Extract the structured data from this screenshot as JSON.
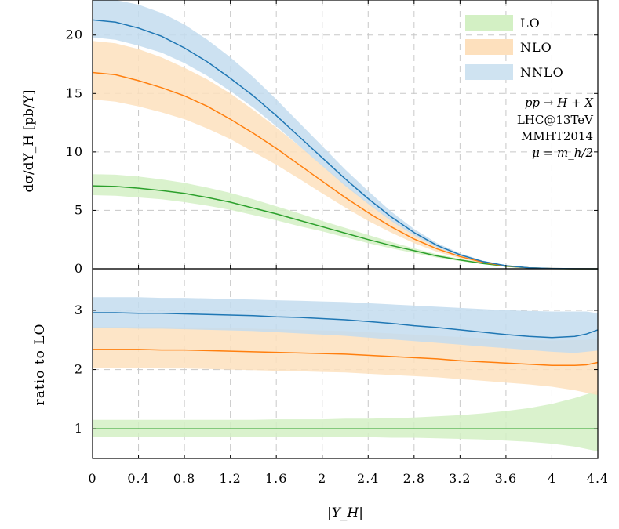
{
  "chart_data": {
    "type": "line",
    "xlabel": "|Y_H|",
    "x_ticks": [
      "0",
      "0.4",
      "0.8",
      "1.2",
      "1.6",
      "2",
      "2.4",
      "2.8",
      "3.2",
      "3.6",
      "4",
      "4.4"
    ],
    "xlim": [
      0,
      4.4
    ],
    "legend": {
      "placement": "top-right",
      "entries": [
        {
          "name": "LO",
          "color": "#d3f0c4"
        },
        {
          "name": "NLO",
          "color": "#fde0bd"
        },
        {
          "name": "NNLO",
          "color": "#cfe3f1"
        }
      ]
    },
    "annotations": [
      "pp → H + X",
      "LHC@13TeV",
      "MMHT2014",
      "μ = m_h/2"
    ],
    "colors": {
      "LO": "#2ca02c",
      "NLO": "#ff7f0e",
      "NNLO": "#1f77b4",
      "LO_band": "#d3f0c4",
      "NLO_band": "#fde0bd",
      "NNLO_band": "#c3dcee"
    },
    "top_panel": {
      "ylabel": "dσ/dY_H [pb/Y]",
      "ylim": [
        0,
        23
      ],
      "y_ticks": [
        "0",
        "5",
        "10",
        "15",
        "20"
      ],
      "x": [
        0,
        0.2,
        0.4,
        0.6,
        0.8,
        1.0,
        1.2,
        1.4,
        1.6,
        1.8,
        2.0,
        2.2,
        2.4,
        2.6,
        2.8,
        3.0,
        3.2,
        3.4,
        3.6,
        3.8,
        4.0,
        4.2,
        4.4
      ],
      "series": [
        {
          "name": "LO",
          "values": [
            7.1,
            7.05,
            6.9,
            6.7,
            6.45,
            6.1,
            5.7,
            5.2,
            4.7,
            4.15,
            3.6,
            3.05,
            2.5,
            2.0,
            1.55,
            1.1,
            0.75,
            0.45,
            0.22,
            0.08,
            0.02,
            0.003,
            0
          ],
          "upper": [
            8.1,
            8.05,
            7.9,
            7.65,
            7.35,
            6.95,
            6.5,
            5.95,
            5.35,
            4.75,
            4.1,
            3.5,
            2.9,
            2.3,
            1.75,
            1.25,
            0.85,
            0.5,
            0.25,
            0.1,
            0.025,
            0.005,
            0
          ],
          "lower": [
            6.3,
            6.25,
            6.1,
            5.95,
            5.7,
            5.4,
            5.05,
            4.6,
            4.15,
            3.65,
            3.2,
            2.7,
            2.2,
            1.75,
            1.35,
            0.95,
            0.65,
            0.4,
            0.19,
            0.07,
            0.015,
            0.002,
            0
          ]
        },
        {
          "name": "NLO",
          "values": [
            16.8,
            16.6,
            16.1,
            15.5,
            14.8,
            13.9,
            12.8,
            11.6,
            10.3,
            8.9,
            7.5,
            6.1,
            4.8,
            3.6,
            2.55,
            1.7,
            1.05,
            0.55,
            0.25,
            0.09,
            0.025,
            0.004,
            0
          ],
          "upper": [
            19.5,
            19.3,
            18.8,
            18.1,
            17.2,
            16.2,
            15.0,
            13.6,
            12.1,
            10.5,
            8.85,
            7.2,
            5.65,
            4.2,
            2.95,
            1.95,
            1.2,
            0.65,
            0.3,
            0.11,
            0.03,
            0.005,
            0
          ],
          "lower": [
            14.5,
            14.3,
            13.9,
            13.4,
            12.8,
            12.0,
            11.1,
            10.0,
            8.9,
            7.7,
            6.45,
            5.25,
            4.1,
            3.1,
            2.2,
            1.45,
            0.9,
            0.47,
            0.21,
            0.08,
            0.02,
            0.003,
            0
          ]
        },
        {
          "name": "NNLO",
          "values": [
            21.3,
            21.1,
            20.6,
            19.9,
            18.9,
            17.7,
            16.3,
            14.8,
            13.1,
            11.3,
            9.5,
            7.7,
            6.0,
            4.45,
            3.1,
            2.0,
            1.2,
            0.62,
            0.27,
            0.09,
            0.025,
            0.004,
            0
          ],
          "upper": [
            23.0,
            23.0,
            22.6,
            21.9,
            20.9,
            19.6,
            18.1,
            16.4,
            14.5,
            12.5,
            10.5,
            8.5,
            6.65,
            4.9,
            3.4,
            2.2,
            1.32,
            0.7,
            0.31,
            0.11,
            0.03,
            0.005,
            0
          ],
          "lower": [
            19.8,
            19.6,
            19.1,
            18.5,
            17.6,
            16.5,
            15.2,
            13.8,
            12.2,
            10.5,
            8.8,
            7.1,
            5.55,
            4.1,
            2.85,
            1.82,
            1.08,
            0.55,
            0.24,
            0.08,
            0.02,
            0.003,
            0
          ]
        }
      ]
    },
    "bottom_panel": {
      "ylabel": "ratio to LO",
      "ylim": [
        0.5,
        3.7
      ],
      "y_ticks": [
        "1",
        "2",
        "3"
      ],
      "x": [
        0,
        0.2,
        0.4,
        0.6,
        0.8,
        1.0,
        1.2,
        1.4,
        1.6,
        1.8,
        2.0,
        2.2,
        2.4,
        2.6,
        2.8,
        3.0,
        3.2,
        3.4,
        3.6,
        3.8,
        4.0,
        4.2,
        4.3,
        4.4
      ],
      "series": [
        {
          "name": "LO",
          "values": [
            1,
            1,
            1,
            1,
            1,
            1,
            1,
            1,
            1,
            1,
            1,
            1,
            1,
            1,
            1,
            1,
            1,
            1,
            1,
            1,
            1,
            1,
            1,
            1
          ],
          "upper": [
            1.15,
            1.15,
            1.15,
            1.15,
            1.15,
            1.15,
            1.15,
            1.15,
            1.16,
            1.16,
            1.16,
            1.17,
            1.17,
            1.18,
            1.19,
            1.21,
            1.23,
            1.26,
            1.3,
            1.35,
            1.42,
            1.52,
            1.58,
            1.65
          ],
          "lower": [
            0.87,
            0.87,
            0.87,
            0.87,
            0.87,
            0.87,
            0.87,
            0.87,
            0.87,
            0.87,
            0.86,
            0.86,
            0.86,
            0.85,
            0.85,
            0.84,
            0.83,
            0.82,
            0.8,
            0.78,
            0.75,
            0.7,
            0.66,
            0.62
          ]
        },
        {
          "name": "NLO",
          "values": [
            2.34,
            2.34,
            2.34,
            2.33,
            2.33,
            2.32,
            2.31,
            2.3,
            2.29,
            2.28,
            2.27,
            2.26,
            2.24,
            2.22,
            2.2,
            2.18,
            2.15,
            2.13,
            2.11,
            2.09,
            2.07,
            2.07,
            2.08,
            2.12
          ],
          "upper": [
            2.72,
            2.72,
            2.72,
            2.72,
            2.71,
            2.71,
            2.7,
            2.69,
            2.68,
            2.67,
            2.66,
            2.65,
            2.63,
            2.61,
            2.59,
            2.57,
            2.55,
            2.53,
            2.51,
            2.5,
            2.49,
            2.5,
            2.5,
            2.53
          ],
          "lower": [
            2.03,
            2.03,
            2.03,
            2.02,
            2.02,
            2.01,
            2.0,
            1.99,
            1.98,
            1.97,
            1.96,
            1.95,
            1.93,
            1.91,
            1.89,
            1.87,
            1.84,
            1.81,
            1.78,
            1.75,
            1.71,
            1.65,
            1.61,
            1.57
          ]
        },
        {
          "name": "NNLO",
          "values": [
            2.96,
            2.96,
            2.95,
            2.95,
            2.94,
            2.93,
            2.92,
            2.91,
            2.89,
            2.88,
            2.86,
            2.84,
            2.81,
            2.78,
            2.74,
            2.71,
            2.67,
            2.63,
            2.59,
            2.56,
            2.54,
            2.56,
            2.6,
            2.67
          ],
          "upper": [
            3.22,
            3.22,
            3.22,
            3.21,
            3.21,
            3.2,
            3.19,
            3.18,
            3.17,
            3.16,
            3.15,
            3.14,
            3.12,
            3.1,
            3.08,
            3.06,
            3.04,
            3.02,
            3.0,
            2.99,
            2.98,
            2.98,
            2.98,
            2.95
          ],
          "lower": [
            2.7,
            2.7,
            2.69,
            2.69,
            2.68,
            2.67,
            2.66,
            2.65,
            2.63,
            2.61,
            2.59,
            2.57,
            2.54,
            2.51,
            2.48,
            2.45,
            2.42,
            2.39,
            2.36,
            2.33,
            2.3,
            2.28,
            2.3,
            2.32
          ]
        }
      ]
    }
  }
}
